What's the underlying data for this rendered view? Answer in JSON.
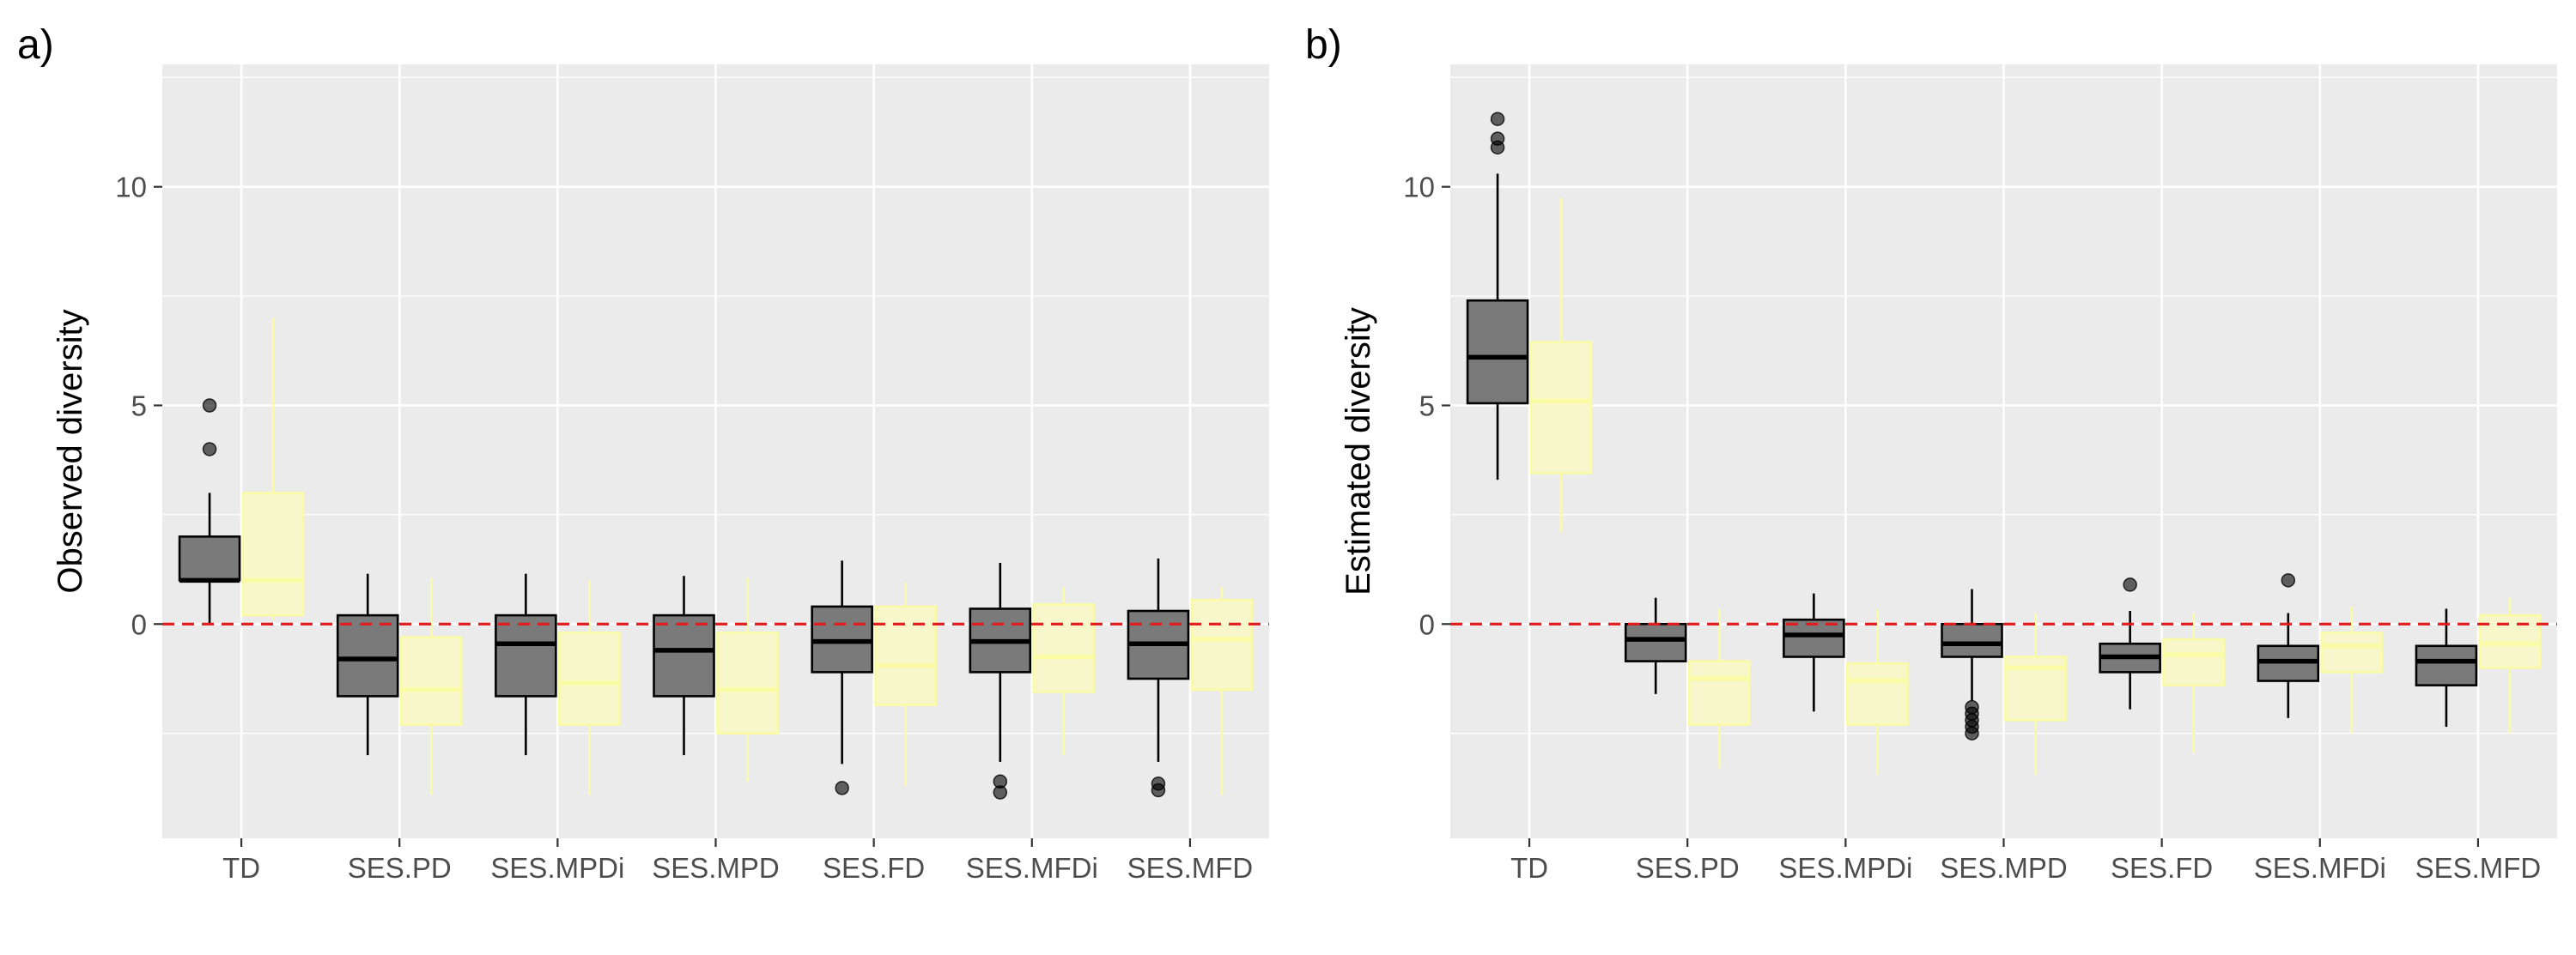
{
  "chart_data": [
    {
      "panel": "a)",
      "type": "boxplot",
      "ylabel": "Observed diversity",
      "xlabel": "",
      "ylim": [
        -4.9,
        12.8
      ],
      "yticks": [
        0,
        5,
        10
      ],
      "categories": [
        "TD",
        "SES.PD",
        "SES.MPDi",
        "SES.MPD",
        "SES.FD",
        "SES.MFDi",
        "SES.MFD"
      ],
      "reference_line": 0,
      "series": [
        {
          "fill": "#7a7a7a",
          "stroke": "#000000",
          "boxes": [
            {
              "whisker_low": 0,
              "q1": 1,
              "median": 1,
              "q3": 2,
              "whisker_high": 3,
              "outliers": [
                4,
                5
              ]
            },
            {
              "whisker_low": -3.0,
              "q1": -1.65,
              "median": -0.8,
              "q3": 0.2,
              "whisker_high": 1.15,
              "outliers": []
            },
            {
              "whisker_low": -3.0,
              "q1": -1.65,
              "median": -0.45,
              "q3": 0.2,
              "whisker_high": 1.15,
              "outliers": []
            },
            {
              "whisker_low": -3.0,
              "q1": -1.65,
              "median": -0.6,
              "q3": 0.2,
              "whisker_high": 1.1,
              "outliers": []
            },
            {
              "whisker_low": -3.2,
              "q1": -1.1,
              "median": -0.4,
              "q3": 0.4,
              "whisker_high": 1.45,
              "outliers": [
                -3.75
              ]
            },
            {
              "whisker_low": -3.15,
              "q1": -1.1,
              "median": -0.4,
              "q3": 0.35,
              "whisker_high": 1.4,
              "outliers": [
                -3.6,
                -3.85
              ]
            },
            {
              "whisker_low": -3.15,
              "q1": -1.25,
              "median": -0.45,
              "q3": 0.3,
              "whisker_high": 1.5,
              "outliers": [
                -3.65,
                -3.8
              ]
            }
          ]
        },
        {
          "fill": "#f8f7cc",
          "stroke": "#fbfba5",
          "boxes": [
            {
              "whisker_low": 0.1,
              "q1": 0.2,
              "median": 1.0,
              "q3": 3.0,
              "whisker_high": 7.0,
              "outliers": []
            },
            {
              "whisker_low": -3.9,
              "q1": -2.3,
              "median": -1.5,
              "q3": -0.3,
              "whisker_high": 1.05,
              "outliers": []
            },
            {
              "whisker_low": -3.9,
              "q1": -2.3,
              "median": -1.35,
              "q3": -0.2,
              "whisker_high": 1.0,
              "outliers": []
            },
            {
              "whisker_low": -3.6,
              "q1": -2.5,
              "median": -1.5,
              "q3": -0.2,
              "whisker_high": 1.05,
              "outliers": []
            },
            {
              "whisker_low": -3.7,
              "q1": -1.85,
              "median": -0.95,
              "q3": 0.4,
              "whisker_high": 0.95,
              "outliers": []
            },
            {
              "whisker_low": -3.0,
              "q1": -1.55,
              "median": -0.75,
              "q3": 0.45,
              "whisker_high": 0.85,
              "outliers": []
            },
            {
              "whisker_low": -3.9,
              "q1": -1.5,
              "median": -0.35,
              "q3": 0.55,
              "whisker_high": 0.85,
              "outliers": []
            }
          ]
        }
      ]
    },
    {
      "panel": "b)",
      "type": "boxplot",
      "ylabel": "Estimated diversity",
      "xlabel": "",
      "ylim": [
        -4.9,
        12.8
      ],
      "yticks": [
        0,
        5,
        10
      ],
      "categories": [
        "TD",
        "SES.PD",
        "SES.MPDi",
        "SES.MPD",
        "SES.FD",
        "SES.MFDi",
        "SES.MFD"
      ],
      "reference_line": 0,
      "series": [
        {
          "fill": "#7a7a7a",
          "stroke": "#000000",
          "boxes": [
            {
              "whisker_low": 3.3,
              "q1": 5.05,
              "median": 6.1,
              "q3": 7.4,
              "whisker_high": 10.3,
              "outliers": [
                10.9,
                11.1,
                11.55
              ]
            },
            {
              "whisker_low": -1.6,
              "q1": -0.85,
              "median": -0.35,
              "q3": 0.0,
              "whisker_high": 0.6,
              "outliers": []
            },
            {
              "whisker_low": -2.0,
              "q1": -0.75,
              "median": -0.25,
              "q3": 0.1,
              "whisker_high": 0.7,
              "outliers": []
            },
            {
              "whisker_low": -1.75,
              "q1": -0.75,
              "median": -0.45,
              "q3": 0.0,
              "whisker_high": 0.8,
              "outliers": [
                -1.9,
                -2.05,
                -2.2,
                -2.35,
                -2.5
              ]
            },
            {
              "whisker_low": -1.95,
              "q1": -1.1,
              "median": -0.75,
              "q3": -0.45,
              "whisker_high": 0.3,
              "outliers": [
                0.9
              ]
            },
            {
              "whisker_low": -2.15,
              "q1": -1.3,
              "median": -0.85,
              "q3": -0.5,
              "whisker_high": 0.25,
              "outliers": [
                1.0
              ]
            },
            {
              "whisker_low": -2.35,
              "q1": -1.4,
              "median": -0.85,
              "q3": -0.5,
              "whisker_high": 0.35,
              "outliers": []
            }
          ]
        },
        {
          "fill": "#f8f7cc",
          "stroke": "#fbfba5",
          "boxes": [
            {
              "whisker_low": 2.1,
              "q1": 3.45,
              "median": 5.1,
              "q3": 6.45,
              "whisker_high": 9.75,
              "outliers": []
            },
            {
              "whisker_low": -3.3,
              "q1": -2.3,
              "median": -1.25,
              "q3": -0.85,
              "whisker_high": 0.35,
              "outliers": []
            },
            {
              "whisker_low": -3.45,
              "q1": -2.3,
              "median": -1.3,
              "q3": -0.9,
              "whisker_high": 0.35,
              "outliers": []
            },
            {
              "whisker_low": -3.45,
              "q1": -2.2,
              "median": -1.0,
              "q3": -0.75,
              "whisker_high": 0.25,
              "outliers": []
            },
            {
              "whisker_low": -2.95,
              "q1": -1.4,
              "median": -0.7,
              "q3": -0.35,
              "whisker_high": 0.25,
              "outliers": []
            },
            {
              "whisker_low": -2.5,
              "q1": -1.1,
              "median": -0.5,
              "q3": -0.2,
              "whisker_high": 0.4,
              "outliers": []
            },
            {
              "whisker_low": -2.5,
              "q1": -1.0,
              "median": -0.45,
              "q3": 0.2,
              "whisker_high": 0.6,
              "outliers": []
            }
          ]
        }
      ]
    }
  ],
  "colors": {
    "panel_background": "#ebebeb",
    "grid_major": "#ffffff",
    "grid_minor": "#f5f5f5",
    "reference_line": "#e31a1c"
  }
}
